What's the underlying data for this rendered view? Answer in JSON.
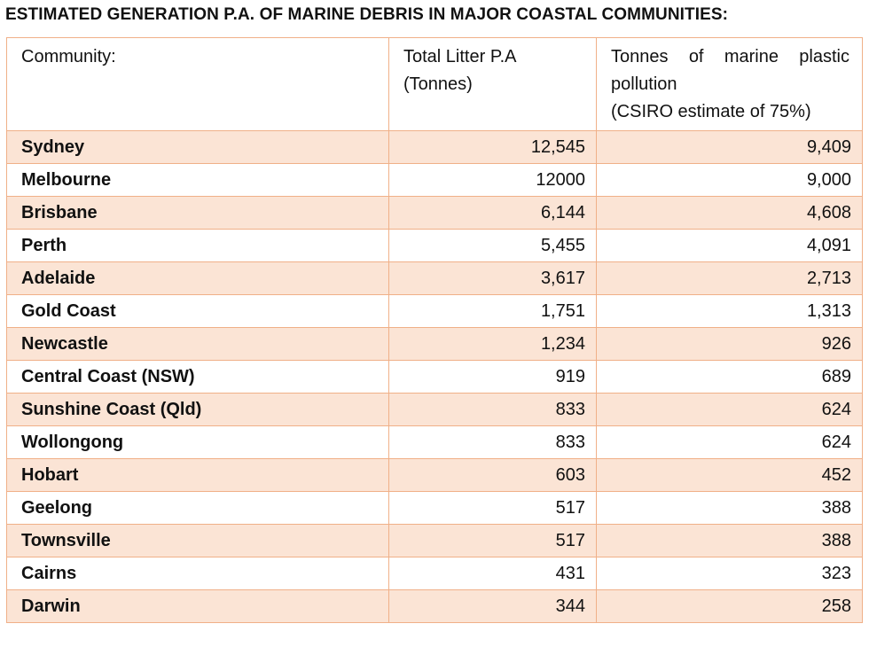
{
  "title": "ESTIMATED GENERATION P.A. OF MARINE DEBRIS IN MAJOR COASTAL COMMUNITIES:",
  "headers": {
    "community": "Community:",
    "total_litter_line1": "Total Litter P.A",
    "total_litter_line2": "(Tonnes)",
    "marine_plastic_line1_words": [
      "Tonnes",
      "of",
      "marine",
      "plastic"
    ],
    "marine_plastic_line2": "pollution",
    "marine_plastic_line3": "(CSIRO estimate of 75%)"
  },
  "rows": [
    {
      "community": "Sydney",
      "total_litter": "12,545",
      "marine_plastic": "9,409"
    },
    {
      "community": "Melbourne",
      "total_litter": "12000",
      "marine_plastic": "9,000"
    },
    {
      "community": "Brisbane",
      "total_litter": "6,144",
      "marine_plastic": "4,608"
    },
    {
      "community": "Perth",
      "total_litter": "5,455",
      "marine_plastic": "4,091"
    },
    {
      "community": "Adelaide",
      "total_litter": "3,617",
      "marine_plastic": "2,713"
    },
    {
      "community": "Gold Coast",
      "total_litter": "1,751",
      "marine_plastic": "1,313"
    },
    {
      "community": "Newcastle",
      "total_litter": "1,234",
      "marine_plastic": "926"
    },
    {
      "community": "Central Coast (NSW)",
      "total_litter": "919",
      "marine_plastic": "689"
    },
    {
      "community": "Sunshine Coast (Qld)",
      "total_litter": "833",
      "marine_plastic": "624"
    },
    {
      "community": "Wollongong",
      "total_litter": "833",
      "marine_plastic": "624"
    },
    {
      "community": "Hobart",
      "total_litter": "603",
      "marine_plastic": "452"
    },
    {
      "community": "Geelong",
      "total_litter": "517",
      "marine_plastic": "388"
    },
    {
      "community": "Townsville",
      "total_litter": "517",
      "marine_plastic": "388"
    },
    {
      "community": "Cairns",
      "total_litter": "431",
      "marine_plastic": "323"
    },
    {
      "community": "Darwin",
      "total_litter": "344",
      "marine_plastic": "258"
    }
  ],
  "colors": {
    "border": "#f0b088",
    "alt_row_fill": "#fbe4d5"
  }
}
